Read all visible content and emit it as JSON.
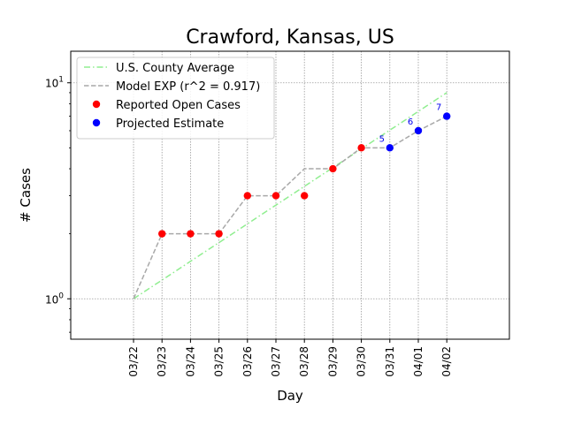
{
  "chart_data": {
    "type": "line",
    "title": "Crawford, Kansas, US",
    "xlabel": "Day",
    "ylabel": "# Cases",
    "y_scale": "log",
    "ylim": [
      0.65,
      14
    ],
    "y_ticks": [
      {
        "value": 1,
        "label": "10^0"
      },
      {
        "value": 10,
        "label": "10^1"
      }
    ],
    "categories": [
      "03/22",
      "03/23",
      "03/24",
      "03/25",
      "03/26",
      "03/27",
      "03/28",
      "03/29",
      "03/30",
      "03/31",
      "04/01",
      "04/02"
    ],
    "grid": true,
    "legend_position": "top-left",
    "series": [
      {
        "name": "U.S. County Average",
        "style": "dash-dot",
        "color": "#90ee90",
        "points": [
          {
            "x": "03/22",
            "y": 1
          },
          {
            "x": "04/02",
            "y": 9
          }
        ]
      },
      {
        "name": "Model EXP (r^2 = 0.917)",
        "style": "dashed",
        "color": "#a9a9a9",
        "points": [
          {
            "x": "03/22",
            "y": 1
          },
          {
            "x": "03/23",
            "y": 2
          },
          {
            "x": "03/24",
            "y": 2
          },
          {
            "x": "03/25",
            "y": 2
          },
          {
            "x": "03/26",
            "y": 3
          },
          {
            "x": "03/27",
            "y": 3
          },
          {
            "x": "03/28",
            "y": 4
          },
          {
            "x": "03/29",
            "y": 4
          },
          {
            "x": "03/30",
            "y": 5
          },
          {
            "x": "03/31",
            "y": 5
          },
          {
            "x": "04/01",
            "y": 6
          },
          {
            "x": "04/02",
            "y": 7
          }
        ]
      },
      {
        "name": "Reported Open Cases",
        "style": "markers",
        "color": "#ff0000",
        "points": [
          {
            "x": "03/23",
            "y": 2
          },
          {
            "x": "03/24",
            "y": 2
          },
          {
            "x": "03/25",
            "y": 2
          },
          {
            "x": "03/26",
            "y": 3
          },
          {
            "x": "03/27",
            "y": 3
          },
          {
            "x": "03/28",
            "y": 3
          },
          {
            "x": "03/29",
            "y": 4
          },
          {
            "x": "03/30",
            "y": 5
          }
        ]
      },
      {
        "name": "Projected Estimate",
        "style": "markers",
        "color": "#0000ff",
        "points": [
          {
            "x": "03/31",
            "y": 5
          },
          {
            "x": "04/01",
            "y": 6
          },
          {
            "x": "04/02",
            "y": 7
          }
        ]
      }
    ],
    "annotations": [
      {
        "x": "03/31",
        "y": 5,
        "text": "5"
      },
      {
        "x": "04/01",
        "y": 6,
        "text": "6"
      },
      {
        "x": "04/02",
        "y": 7,
        "text": "7"
      }
    ]
  }
}
